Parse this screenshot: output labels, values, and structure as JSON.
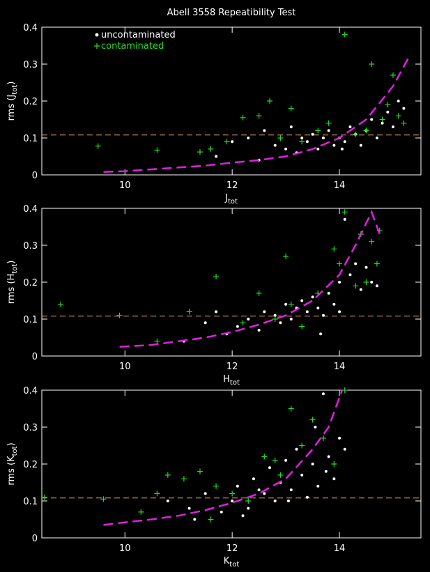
{
  "chart_data": [
    {
      "type": "scatter",
      "title": "Abell 3558 Repeatibility Test",
      "xlabel_parts": [
        "J",
        "tot"
      ],
      "ylabel_parts": [
        "rms (J",
        "tot",
        ")"
      ],
      "xlim": [
        8.45,
        15.52
      ],
      "ylim": [
        0,
        0.4
      ],
      "xticks": [
        10,
        12,
        14
      ],
      "yticks": [
        0,
        0.1,
        0.2,
        0.3,
        0.4
      ],
      "legend": "upper left",
      "hline": 0.108,
      "hline_color": "#f0a060",
      "series": [
        {
          "name": "uncontaminated",
          "color": "#ffffff",
          "marker": "dot",
          "x": [
            11.7,
            12.0,
            12.3,
            12.5,
            12.6,
            12.8,
            13.0,
            13.1,
            13.2,
            13.4,
            13.5,
            13.6,
            13.7,
            13.8,
            13.9,
            14.0,
            14.1,
            14.2,
            14.3,
            14.4,
            14.5,
            14.6,
            14.7,
            14.8,
            14.9,
            15.0,
            15.1,
            15.2,
            13.3,
            14.05
          ],
          "values": [
            0.05,
            0.09,
            0.1,
            0.04,
            0.12,
            0.08,
            0.07,
            0.13,
            0.06,
            0.09,
            0.11,
            0.07,
            0.1,
            0.12,
            0.08,
            0.1,
            0.09,
            0.13,
            0.11,
            0.08,
            0.12,
            0.15,
            0.1,
            0.14,
            0.17,
            0.13,
            0.2,
            0.18,
            0.1,
            0.07
          ]
        },
        {
          "name": "contaminated",
          "color": "#22dd22",
          "marker": "plus",
          "x": [
            9.5,
            10.6,
            11.4,
            11.6,
            11.9,
            12.2,
            12.5,
            12.7,
            12.9,
            13.1,
            13.3,
            13.6,
            13.8,
            14.1,
            14.3,
            14.5,
            14.6,
            14.8,
            14.9,
            15.0,
            15.1,
            15.2
          ],
          "values": [
            0.078,
            0.067,
            0.062,
            0.07,
            0.09,
            0.155,
            0.16,
            0.2,
            0.1,
            0.18,
            0.09,
            0.12,
            0.14,
            0.38,
            0.11,
            0.12,
            0.3,
            0.15,
            0.19,
            0.27,
            0.16,
            0.14
          ]
        },
        {
          "color": "#e020e0",
          "marker": "line",
          "x": [
            9.6,
            10,
            10.5,
            11,
            11.5,
            12,
            12.5,
            13,
            13.5,
            14,
            14.5,
            15,
            15.3
          ],
          "values": [
            0.008,
            0.01,
            0.015,
            0.02,
            0.025,
            0.033,
            0.04,
            0.05,
            0.07,
            0.1,
            0.15,
            0.24,
            0.32
          ]
        }
      ]
    },
    {
      "type": "scatter",
      "xlabel_parts": [
        "H",
        "tot"
      ],
      "ylabel_parts": [
        "rms (H",
        "tot",
        ")"
      ],
      "xlim": [
        8.45,
        15.52
      ],
      "ylim": [
        0,
        0.4
      ],
      "xticks": [
        10,
        12,
        14
      ],
      "yticks": [
        0,
        0.1,
        0.2,
        0.3,
        0.4
      ],
      "hline": 0.108,
      "hline_color": "#f0a060",
      "series": [
        {
          "color": "#ffffff",
          "marker": "dot",
          "x": [
            11.1,
            11.5,
            11.7,
            11.9,
            12.1,
            12.3,
            12.5,
            12.6,
            12.8,
            12.9,
            13.0,
            13.1,
            13.2,
            13.3,
            13.4,
            13.5,
            13.6,
            13.7,
            13.8,
            13.9,
            14.0,
            14.1,
            14.2,
            14.3,
            14.4,
            14.5,
            14.6,
            14.7,
            14.0,
            13.65
          ],
          "values": [
            0.04,
            0.09,
            0.12,
            0.06,
            0.08,
            0.1,
            0.07,
            0.12,
            0.11,
            0.09,
            0.14,
            0.1,
            0.13,
            0.15,
            0.12,
            0.16,
            0.13,
            0.11,
            0.17,
            0.14,
            0.2,
            0.37,
            0.22,
            0.25,
            0.18,
            0.24,
            0.2,
            0.19,
            0.12,
            0.06
          ]
        },
        {
          "color": "#22dd22",
          "marker": "plus",
          "x": [
            8.8,
            9.9,
            10.6,
            11.2,
            11.7,
            12.2,
            12.5,
            12.8,
            13.0,
            13.1,
            13.3,
            13.6,
            13.9,
            14.0,
            14.1,
            14.3,
            14.4,
            14.5,
            14.6,
            14.7,
            14.75
          ],
          "values": [
            0.14,
            0.11,
            0.04,
            0.12,
            0.215,
            0.09,
            0.17,
            0.1,
            0.27,
            0.14,
            0.08,
            0.17,
            0.29,
            0.25,
            0.39,
            0.19,
            0.33,
            0.2,
            0.31,
            0.25,
            0.34
          ]
        },
        {
          "color": "#e020e0",
          "marker": "line",
          "x": [
            9.9,
            10.5,
            11,
            11.5,
            12,
            12.5,
            13,
            13.5,
            14,
            14.3,
            14.6,
            14.75
          ],
          "values": [
            0.025,
            0.03,
            0.04,
            0.05,
            0.065,
            0.085,
            0.11,
            0.15,
            0.22,
            0.3,
            0.39,
            0.33
          ]
        }
      ]
    },
    {
      "type": "scatter",
      "xlabel_parts": [
        "K",
        "tot"
      ],
      "ylabel_parts": [
        "rms (K",
        "tot",
        ")"
      ],
      "xlim": [
        8.45,
        15.52
      ],
      "ylim": [
        0,
        0.4
      ],
      "xticks": [
        10,
        12,
        14
      ],
      "yticks": [
        0,
        0.1,
        0.2,
        0.3,
        0.4
      ],
      "hline": 0.108,
      "hline_color": "#f0a060",
      "series": [
        {
          "color": "#ffffff",
          "marker": "dot",
          "x": [
            10.8,
            11.3,
            11.5,
            11.8,
            12.0,
            12.1,
            12.3,
            12.4,
            12.6,
            12.7,
            12.8,
            12.9,
            13.0,
            13.1,
            13.2,
            13.3,
            13.4,
            13.5,
            13.6,
            13.7,
            13.8,
            13.9,
            14.0,
            14.1,
            12.2,
            12.5,
            13.05,
            13.75,
            11.2,
            13.55
          ],
          "values": [
            0.1,
            0.05,
            0.12,
            0.07,
            0.1,
            0.14,
            0.08,
            0.16,
            0.12,
            0.19,
            0.1,
            0.15,
            0.21,
            0.13,
            0.24,
            0.17,
            0.11,
            0.2,
            0.14,
            0.39,
            0.22,
            0.16,
            0.27,
            0.24,
            0.06,
            0.13,
            0.1,
            0.18,
            0.08,
            0.3
          ]
        },
        {
          "color": "#22dd22",
          "marker": "plus",
          "x": [
            8.5,
            9.6,
            10.3,
            10.6,
            10.8,
            11.1,
            11.4,
            11.6,
            12.0,
            12.3,
            12.6,
            12.9,
            13.1,
            13.3,
            13.5,
            13.7,
            13.9,
            14.1,
            11.7,
            12.8
          ],
          "values": [
            0.11,
            0.105,
            0.07,
            0.12,
            0.17,
            0.16,
            0.18,
            0.05,
            0.12,
            0.1,
            0.22,
            0.17,
            0.35,
            0.25,
            0.32,
            0.27,
            0.2,
            0.4,
            0.14,
            0.21
          ]
        },
        {
          "color": "#e020e0",
          "marker": "line",
          "x": [
            9.6,
            10,
            10.5,
            11,
            11.5,
            12,
            12.5,
            13,
            13.5,
            13.8,
            14.05
          ],
          "values": [
            0.035,
            0.042,
            0.05,
            0.06,
            0.075,
            0.095,
            0.12,
            0.16,
            0.24,
            0.3,
            0.4
          ]
        }
      ]
    }
  ]
}
